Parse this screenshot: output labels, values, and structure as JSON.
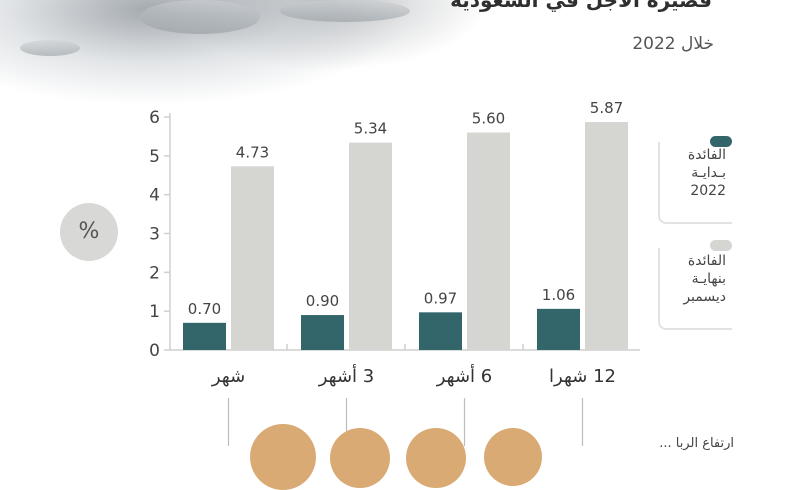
{
  "header": {
    "title": "قصيرة الأجل في السعودية",
    "subtitle": "خلال 2022"
  },
  "unit_badge": "%",
  "legend": [
    {
      "id": "start",
      "label_lines": [
        "الفائدة",
        "بـدايـة",
        "2022"
      ],
      "color": "#33666b"
    },
    {
      "id": "end",
      "label_lines": [
        "الفائدة",
        "بنهايـة",
        "ديسمبر"
      ],
      "color": "#d5d6d2"
    }
  ],
  "footer_note": "ارتفاع الربا ...",
  "chart_data": {
    "type": "bar",
    "categories": [
      "شهر",
      "3 أشهر",
      "6 أشهر",
      "12 شهرا"
    ],
    "series": [
      {
        "name": "الفائدة بداية 2022",
        "values": [
          0.7,
          0.9,
          0.97,
          1.06
        ],
        "color": "#33666b"
      },
      {
        "name": "الفائدة بنهاية ديسمبر",
        "values": [
          4.73,
          5.34,
          5.6,
          5.87
        ],
        "color": "#d5d6d2"
      }
    ],
    "value_labels": [
      [
        "0.70",
        "0.90",
        "0.97",
        "1.06"
      ],
      [
        "4.73",
        "5.34",
        "5.60",
        "5.87"
      ]
    ],
    "yticks": [
      0,
      1,
      2,
      3,
      4,
      5,
      6
    ],
    "ylim": [
      0,
      6
    ],
    "title": "",
    "xlabel": "",
    "ylabel": "",
    "grid": false,
    "legend_position": "right"
  }
}
